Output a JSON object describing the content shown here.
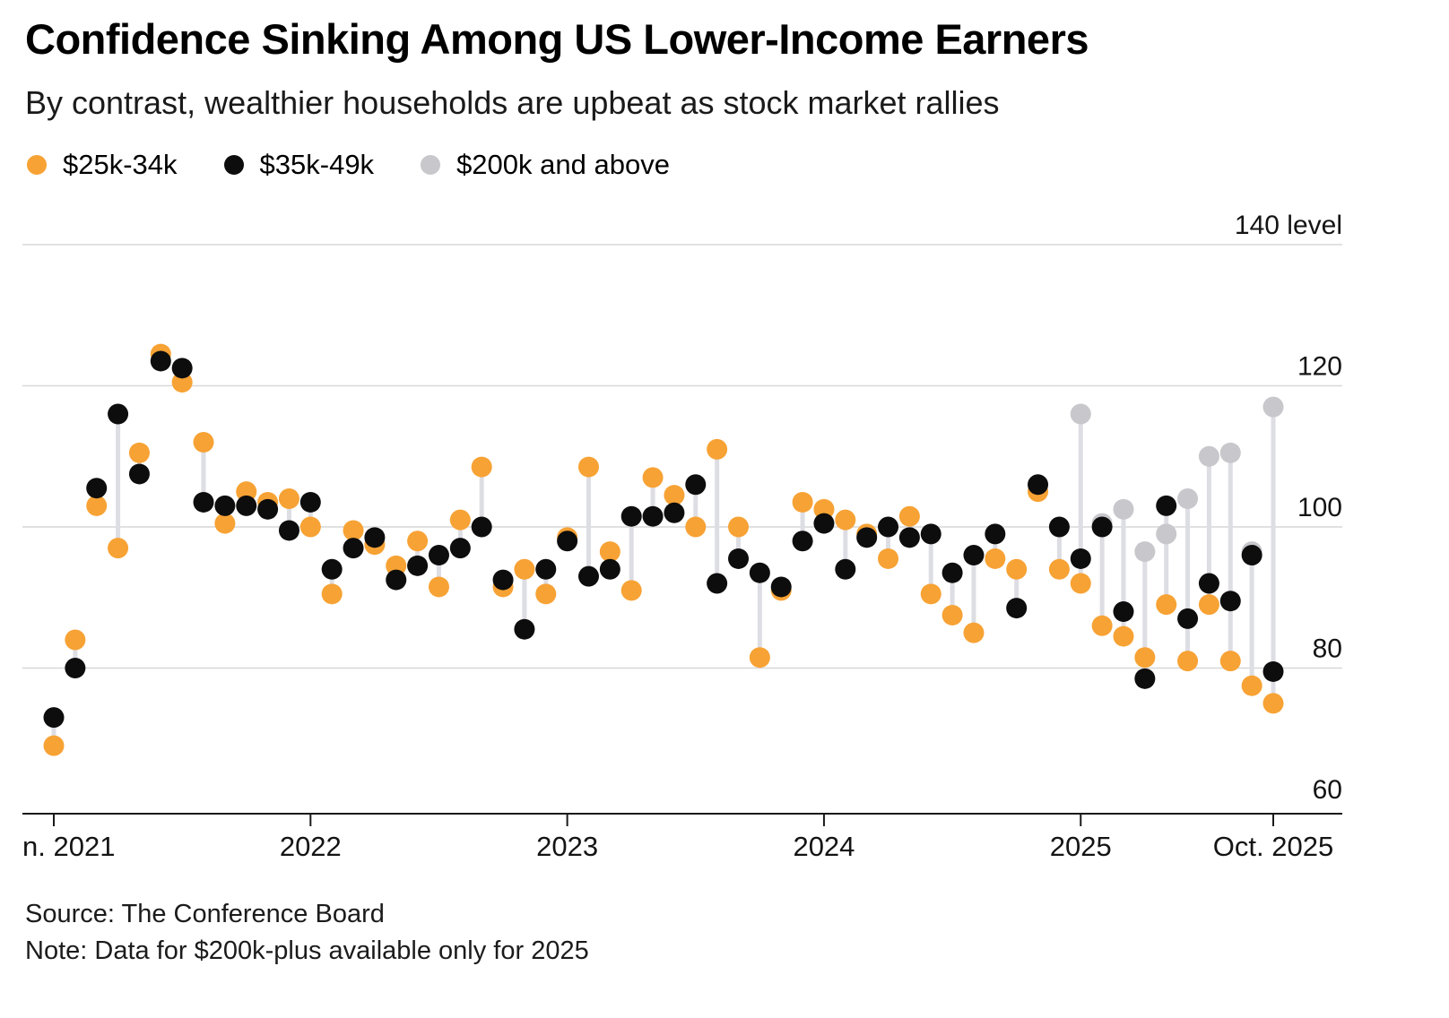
{
  "header": {
    "title": "Confidence Sinking Among US Lower-Income Earners",
    "subtitle": "By contrast, wealthier households are upbeat as stock market rallies"
  },
  "footer": {
    "source": "Source: The Conference Board",
    "note": "Note: Data for $200k-plus available only for 2025"
  },
  "chart_data": {
    "type": "scatter",
    "title": "Confidence Sinking Among US Lower-Income Earners",
    "subtitle": "By contrast, wealthier households are upbeat as stock market rallies",
    "ylim": [
      60,
      140
    ],
    "grid": true,
    "legend_position": "top-left",
    "background_color": "#ffffff",
    "connector_color": "#DDDDE4",
    "gridline_color": "#D7D7D7",
    "axis_color": "#1a1a1a",
    "series_meta": [
      {
        "name": "$25k-34k",
        "key": "o",
        "slug": "25k-34k",
        "color": "#F7A234"
      },
      {
        "name": "$35k-49k",
        "key": "b",
        "slug": "35k-49k",
        "color": "#0D0D0D"
      },
      {
        "name": "$200k and above",
        "key": "g",
        "slug": "200k-and-above",
        "color": "#C7C7CC"
      }
    ],
    "y_ticks": [
      {
        "value": 140,
        "label": "140 level"
      },
      {
        "value": 120,
        "label": "120"
      },
      {
        "value": 100,
        "label": "100"
      },
      {
        "value": 80,
        "label": "80"
      },
      {
        "value": 60,
        "label": "60"
      }
    ],
    "x_ticks": [
      {
        "label": "n. 2021",
        "month_index": 0,
        "align": "left"
      },
      {
        "label": "2022",
        "month_index": 12,
        "align": "center"
      },
      {
        "label": "2023",
        "month_index": 24,
        "align": "center"
      },
      {
        "label": "2024",
        "month_index": 36,
        "align": "center"
      },
      {
        "label": "2025",
        "month_index": 48,
        "align": "center"
      },
      {
        "label": "Oct. 2025",
        "month_index": 57,
        "align": "center"
      }
    ],
    "points": [
      {
        "month": "Jan 2021",
        "o": 69,
        "b": 73
      },
      {
        "month": "Feb 2021",
        "o": 84,
        "b": 80
      },
      {
        "month": "Mar 2021",
        "o": 103,
        "b": 105.5
      },
      {
        "month": "Apr 2021",
        "o": 97,
        "b": 116
      },
      {
        "month": "May 2021",
        "o": 110.5,
        "b": 107.5
      },
      {
        "month": "Jun 2021",
        "o": 124.5,
        "b": 123.5
      },
      {
        "month": "Jul 2021",
        "o": 120.5,
        "b": 122.5
      },
      {
        "month": "Aug 2021",
        "o": 112,
        "b": 103.5
      },
      {
        "month": "Sep 2021",
        "o": 100.5,
        "b": 103
      },
      {
        "month": "Oct 2021",
        "o": 105,
        "b": 103
      },
      {
        "month": "Nov 2021",
        "o": 103.5,
        "b": 102.5
      },
      {
        "month": "Dec 2021",
        "o": 104,
        "b": 99.5
      },
      {
        "month": "Jan 2022",
        "o": 100,
        "b": 103.5
      },
      {
        "month": "Feb 2022",
        "o": 90.5,
        "b": 94
      },
      {
        "month": "Mar 2022",
        "o": 99.5,
        "b": 97
      },
      {
        "month": "Apr 2022",
        "o": 97.5,
        "b": 98.5
      },
      {
        "month": "May 2022",
        "o": 94.5,
        "b": 92.5
      },
      {
        "month": "Jun 2022",
        "o": 98,
        "b": 94.5
      },
      {
        "month": "Jul 2022",
        "o": 91.5,
        "b": 96
      },
      {
        "month": "Aug 2022",
        "o": 101,
        "b": 97
      },
      {
        "month": "Sep 2022",
        "o": 108.5,
        "b": 100
      },
      {
        "month": "Oct 2022",
        "o": 91.5,
        "b": 92.5
      },
      {
        "month": "Nov 2022",
        "o": 94,
        "b": 85.5
      },
      {
        "month": "Dec 2022",
        "o": 90.5,
        "b": 94
      },
      {
        "month": "Jan 2023",
        "o": 98.5,
        "b": 98
      },
      {
        "month": "Feb 2023",
        "o": 108.5,
        "b": 93
      },
      {
        "month": "Mar 2023",
        "o": 96.5,
        "b": 94
      },
      {
        "month": "Apr 2023",
        "o": 91,
        "b": 101.5
      },
      {
        "month": "May 2023",
        "o": 107,
        "b": 101.5
      },
      {
        "month": "Jun 2023",
        "o": 104.5,
        "b": 102
      },
      {
        "month": "Jul 2023",
        "o": 100,
        "b": 106
      },
      {
        "month": "Aug 2023",
        "o": 111,
        "b": 92
      },
      {
        "month": "Sep 2023",
        "o": 100,
        "b": 95.5
      },
      {
        "month": "Oct 2023",
        "o": 81.5,
        "b": 93.5
      },
      {
        "month": "Nov 2023",
        "o": 91,
        "b": 91.5
      },
      {
        "month": "Dec 2023",
        "o": 103.5,
        "b": 98
      },
      {
        "month": "Jan 2024",
        "o": 102.5,
        "b": 100.5
      },
      {
        "month": "Feb 2024",
        "o": 101,
        "b": 94
      },
      {
        "month": "Mar 2024",
        "o": 99,
        "b": 98.5
      },
      {
        "month": "Apr 2024",
        "o": 95.5,
        "b": 100
      },
      {
        "month": "May 2024",
        "o": 101.5,
        "b": 98.5
      },
      {
        "month": "Jun 2024",
        "o": 90.5,
        "b": 99
      },
      {
        "month": "Jul 2024",
        "o": 87.5,
        "b": 93.5
      },
      {
        "month": "Aug 2024",
        "o": 85,
        "b": 96
      },
      {
        "month": "Sep 2024",
        "o": 95.5,
        "b": 99
      },
      {
        "month": "Oct 2024",
        "o": 94,
        "b": 88.5
      },
      {
        "month": "Nov 2024",
        "o": 105,
        "b": 106
      },
      {
        "month": "Dec 2024",
        "o": 94,
        "b": 100
      },
      {
        "month": "Jan 2025",
        "o": 92,
        "b": 95.5,
        "g": 116
      },
      {
        "month": "Feb 2025",
        "o": 86,
        "b": 100,
        "g": 100.5
      },
      {
        "month": "Mar 2025",
        "o": 84.5,
        "b": 88,
        "g": 102.5
      },
      {
        "month": "Apr 2025",
        "o": 81.5,
        "b": 78.5,
        "g": 96.5
      },
      {
        "month": "May 2025",
        "o": 89,
        "b": 103,
        "g": 99
      },
      {
        "month": "Jun 2025",
        "o": 81,
        "b": 87,
        "g": 104
      },
      {
        "month": "Jul 2025",
        "o": 89,
        "b": 92,
        "g": 110
      },
      {
        "month": "Aug 2025",
        "o": 81,
        "b": 89.5,
        "g": 110.5
      },
      {
        "month": "Sep 2025",
        "o": 77.5,
        "b": 96,
        "g": 96.5
      },
      {
        "month": "Oct 2025",
        "o": 75,
        "b": 79.5,
        "g": 117
      }
    ]
  }
}
